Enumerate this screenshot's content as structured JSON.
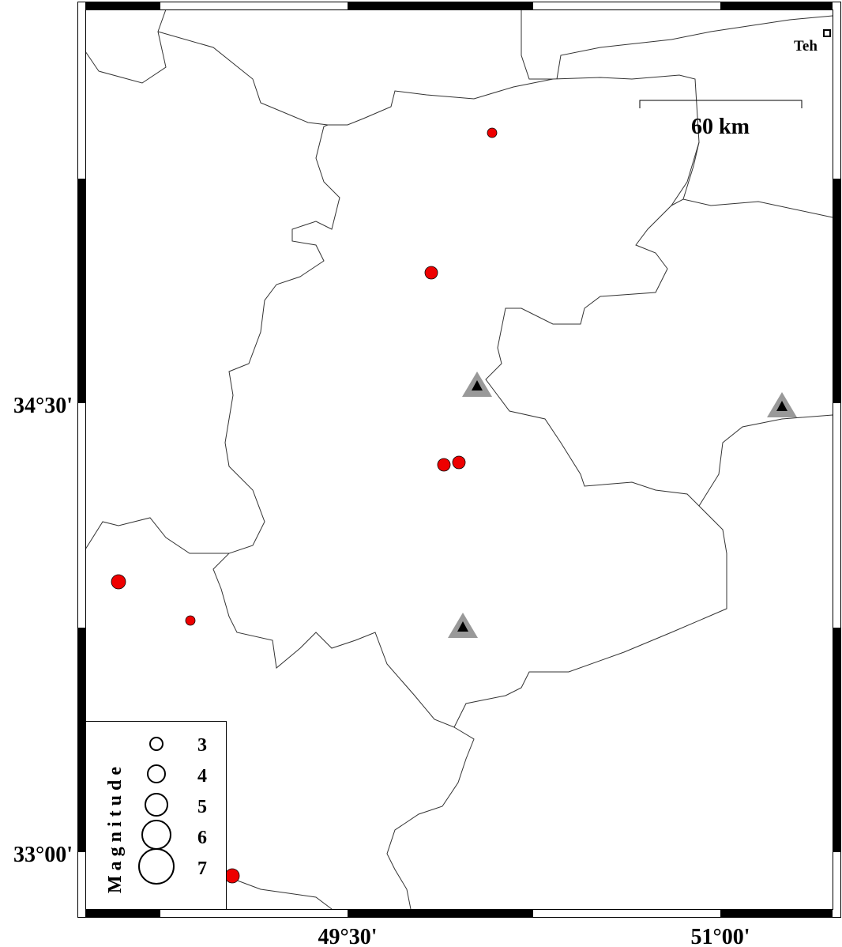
{
  "axes": {
    "y_labels": [
      "34°30'",
      "33°00'"
    ],
    "x_labels": [
      "49°30'",
      "51°00'"
    ]
  },
  "scale_bar": {
    "label": "60 km"
  },
  "city": {
    "label": "Teh"
  },
  "legend": {
    "title": "Magnitude",
    "sizes": [
      "3",
      "4",
      "5",
      "6",
      "7"
    ]
  }
}
